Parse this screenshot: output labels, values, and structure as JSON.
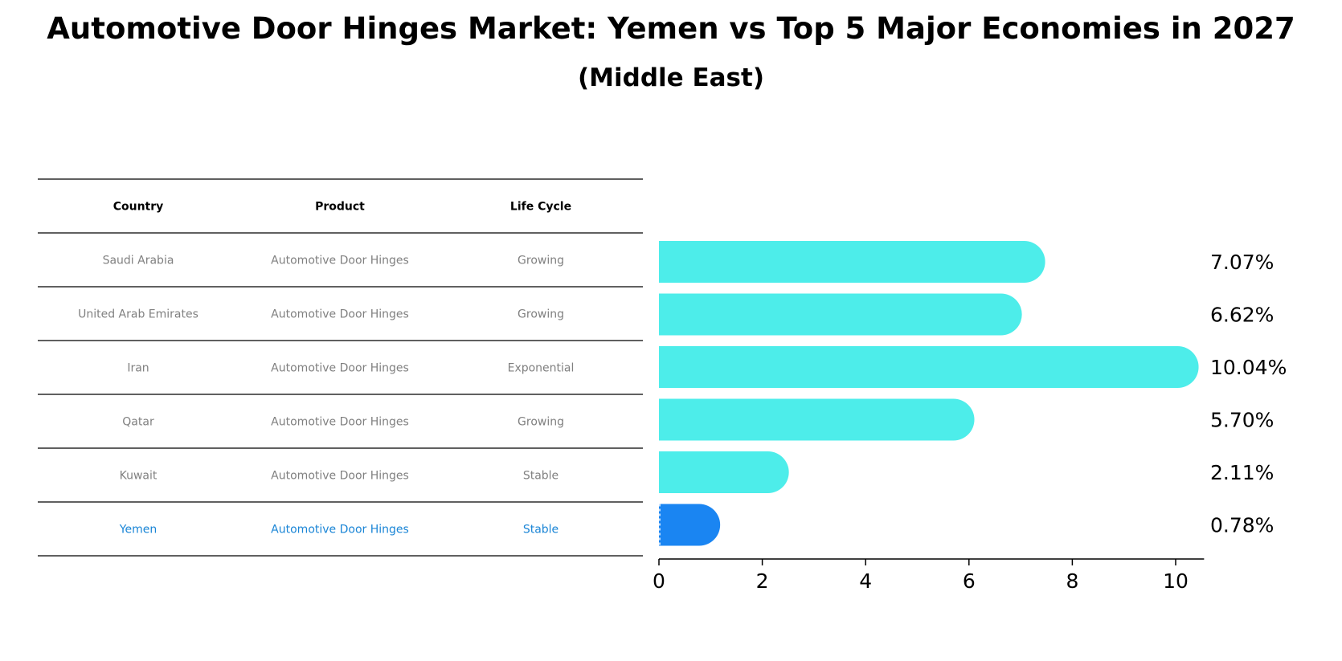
{
  "title": "Automotive Door Hinges Market: Yemen vs Top 5 Major Economies in 2027",
  "subtitle": "(Middle East)",
  "colors": {
    "bar": "#4DEDEA",
    "highlight_bar": "#1A85F2",
    "highlight_text": "#1A85D6",
    "table_text": "#808080",
    "rule": "#000000"
  },
  "table": {
    "headers": [
      "Country",
      "Product",
      "Life Cycle"
    ],
    "rows": [
      {
        "country": "Saudi Arabia",
        "product": "Automotive Door Hinges",
        "life_cycle": "Growing"
      },
      {
        "country": "United Arab Emirates",
        "product": "Automotive Door Hinges",
        "life_cycle": "Growing"
      },
      {
        "country": "Iran",
        "product": "Automotive Door Hinges",
        "life_cycle": "Exponential"
      },
      {
        "country": "Qatar",
        "product": "Automotive Door Hinges",
        "life_cycle": "Growing"
      },
      {
        "country": "Kuwait",
        "product": "Automotive Door Hinges",
        "life_cycle": "Stable"
      },
      {
        "country": "Yemen",
        "product": "Automotive Door Hinges",
        "life_cycle": "Stable",
        "highlight": true
      }
    ]
  },
  "chart_data": {
    "type": "bar",
    "orientation": "horizontal",
    "categories": [
      "Saudi Arabia",
      "United Arab Emirates",
      "Iran",
      "Qatar",
      "Kuwait",
      "Yemen"
    ],
    "values": [
      7.07,
      6.62,
      10.04,
      5.7,
      2.11,
      0.78
    ],
    "value_labels": [
      "7.07%",
      "6.62%",
      "10.04%",
      "5.70%",
      "2.11%",
      "0.78%"
    ],
    "highlight": "Yemen",
    "xlim": [
      0,
      10.55
    ],
    "xticks": [
      0,
      2,
      4,
      6,
      8,
      10
    ],
    "grid": false
  }
}
